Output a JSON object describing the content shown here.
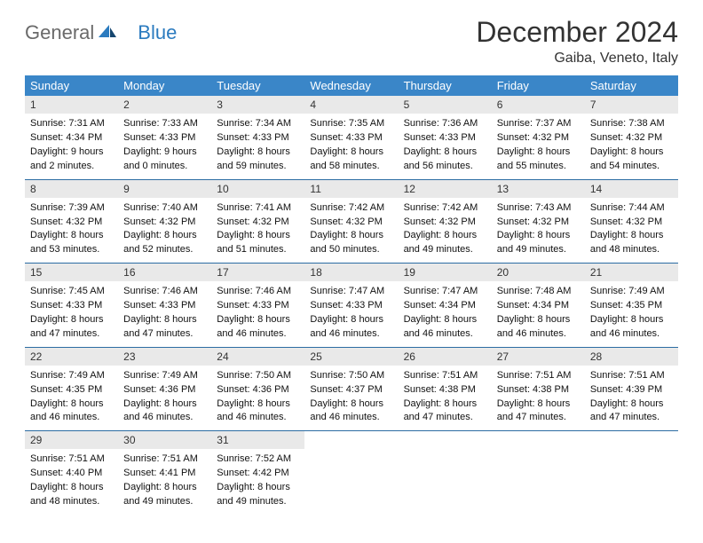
{
  "brand": {
    "word1": "General",
    "word2": "Blue"
  },
  "header": {
    "month_title": "December 2024",
    "location": "Gaiba, Veneto, Italy"
  },
  "colors": {
    "header_bg": "#3a86c8",
    "header_text": "#ffffff",
    "daynum_bg": "#e9e9e9",
    "row_divider": "#2b6ca3",
    "logo_gray": "#6a6a6a",
    "logo_blue": "#2b7bbf",
    "text": "#111111"
  },
  "day_headers": [
    "Sunday",
    "Monday",
    "Tuesday",
    "Wednesday",
    "Thursday",
    "Friday",
    "Saturday"
  ],
  "weeks": [
    [
      {
        "n": "1",
        "sr": "Sunrise: 7:31 AM",
        "ss": "Sunset: 4:34 PM",
        "d1": "Daylight: 9 hours",
        "d2": "and 2 minutes."
      },
      {
        "n": "2",
        "sr": "Sunrise: 7:33 AM",
        "ss": "Sunset: 4:33 PM",
        "d1": "Daylight: 9 hours",
        "d2": "and 0 minutes."
      },
      {
        "n": "3",
        "sr": "Sunrise: 7:34 AM",
        "ss": "Sunset: 4:33 PM",
        "d1": "Daylight: 8 hours",
        "d2": "and 59 minutes."
      },
      {
        "n": "4",
        "sr": "Sunrise: 7:35 AM",
        "ss": "Sunset: 4:33 PM",
        "d1": "Daylight: 8 hours",
        "d2": "and 58 minutes."
      },
      {
        "n": "5",
        "sr": "Sunrise: 7:36 AM",
        "ss": "Sunset: 4:33 PM",
        "d1": "Daylight: 8 hours",
        "d2": "and 56 minutes."
      },
      {
        "n": "6",
        "sr": "Sunrise: 7:37 AM",
        "ss": "Sunset: 4:32 PM",
        "d1": "Daylight: 8 hours",
        "d2": "and 55 minutes."
      },
      {
        "n": "7",
        "sr": "Sunrise: 7:38 AM",
        "ss": "Sunset: 4:32 PM",
        "d1": "Daylight: 8 hours",
        "d2": "and 54 minutes."
      }
    ],
    [
      {
        "n": "8",
        "sr": "Sunrise: 7:39 AM",
        "ss": "Sunset: 4:32 PM",
        "d1": "Daylight: 8 hours",
        "d2": "and 53 minutes."
      },
      {
        "n": "9",
        "sr": "Sunrise: 7:40 AM",
        "ss": "Sunset: 4:32 PM",
        "d1": "Daylight: 8 hours",
        "d2": "and 52 minutes."
      },
      {
        "n": "10",
        "sr": "Sunrise: 7:41 AM",
        "ss": "Sunset: 4:32 PM",
        "d1": "Daylight: 8 hours",
        "d2": "and 51 minutes."
      },
      {
        "n": "11",
        "sr": "Sunrise: 7:42 AM",
        "ss": "Sunset: 4:32 PM",
        "d1": "Daylight: 8 hours",
        "d2": "and 50 minutes."
      },
      {
        "n": "12",
        "sr": "Sunrise: 7:42 AM",
        "ss": "Sunset: 4:32 PM",
        "d1": "Daylight: 8 hours",
        "d2": "and 49 minutes."
      },
      {
        "n": "13",
        "sr": "Sunrise: 7:43 AM",
        "ss": "Sunset: 4:32 PM",
        "d1": "Daylight: 8 hours",
        "d2": "and 49 minutes."
      },
      {
        "n": "14",
        "sr": "Sunrise: 7:44 AM",
        "ss": "Sunset: 4:32 PM",
        "d1": "Daylight: 8 hours",
        "d2": "and 48 minutes."
      }
    ],
    [
      {
        "n": "15",
        "sr": "Sunrise: 7:45 AM",
        "ss": "Sunset: 4:33 PM",
        "d1": "Daylight: 8 hours",
        "d2": "and 47 minutes."
      },
      {
        "n": "16",
        "sr": "Sunrise: 7:46 AM",
        "ss": "Sunset: 4:33 PM",
        "d1": "Daylight: 8 hours",
        "d2": "and 47 minutes."
      },
      {
        "n": "17",
        "sr": "Sunrise: 7:46 AM",
        "ss": "Sunset: 4:33 PM",
        "d1": "Daylight: 8 hours",
        "d2": "and 46 minutes."
      },
      {
        "n": "18",
        "sr": "Sunrise: 7:47 AM",
        "ss": "Sunset: 4:33 PM",
        "d1": "Daylight: 8 hours",
        "d2": "and 46 minutes."
      },
      {
        "n": "19",
        "sr": "Sunrise: 7:47 AM",
        "ss": "Sunset: 4:34 PM",
        "d1": "Daylight: 8 hours",
        "d2": "and 46 minutes."
      },
      {
        "n": "20",
        "sr": "Sunrise: 7:48 AM",
        "ss": "Sunset: 4:34 PM",
        "d1": "Daylight: 8 hours",
        "d2": "and 46 minutes."
      },
      {
        "n": "21",
        "sr": "Sunrise: 7:49 AM",
        "ss": "Sunset: 4:35 PM",
        "d1": "Daylight: 8 hours",
        "d2": "and 46 minutes."
      }
    ],
    [
      {
        "n": "22",
        "sr": "Sunrise: 7:49 AM",
        "ss": "Sunset: 4:35 PM",
        "d1": "Daylight: 8 hours",
        "d2": "and 46 minutes."
      },
      {
        "n": "23",
        "sr": "Sunrise: 7:49 AM",
        "ss": "Sunset: 4:36 PM",
        "d1": "Daylight: 8 hours",
        "d2": "and 46 minutes."
      },
      {
        "n": "24",
        "sr": "Sunrise: 7:50 AM",
        "ss": "Sunset: 4:36 PM",
        "d1": "Daylight: 8 hours",
        "d2": "and 46 minutes."
      },
      {
        "n": "25",
        "sr": "Sunrise: 7:50 AM",
        "ss": "Sunset: 4:37 PM",
        "d1": "Daylight: 8 hours",
        "d2": "and 46 minutes."
      },
      {
        "n": "26",
        "sr": "Sunrise: 7:51 AM",
        "ss": "Sunset: 4:38 PM",
        "d1": "Daylight: 8 hours",
        "d2": "and 47 minutes."
      },
      {
        "n": "27",
        "sr": "Sunrise: 7:51 AM",
        "ss": "Sunset: 4:38 PM",
        "d1": "Daylight: 8 hours",
        "d2": "and 47 minutes."
      },
      {
        "n": "28",
        "sr": "Sunrise: 7:51 AM",
        "ss": "Sunset: 4:39 PM",
        "d1": "Daylight: 8 hours",
        "d2": "and 47 minutes."
      }
    ],
    [
      {
        "n": "29",
        "sr": "Sunrise: 7:51 AM",
        "ss": "Sunset: 4:40 PM",
        "d1": "Daylight: 8 hours",
        "d2": "and 48 minutes."
      },
      {
        "n": "30",
        "sr": "Sunrise: 7:51 AM",
        "ss": "Sunset: 4:41 PM",
        "d1": "Daylight: 8 hours",
        "d2": "and 49 minutes."
      },
      {
        "n": "31",
        "sr": "Sunrise: 7:52 AM",
        "ss": "Sunset: 4:42 PM",
        "d1": "Daylight: 8 hours",
        "d2": "and 49 minutes."
      },
      null,
      null,
      null,
      null
    ]
  ]
}
